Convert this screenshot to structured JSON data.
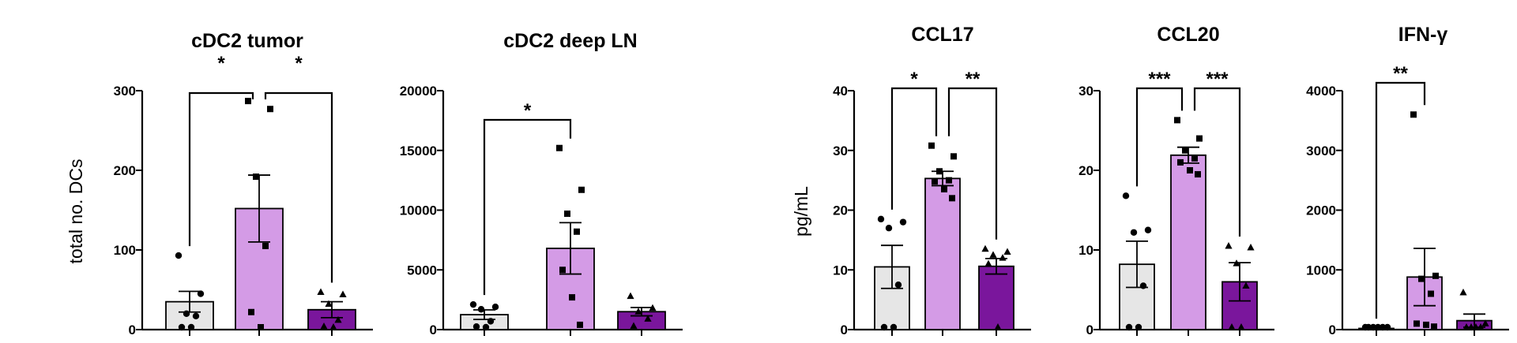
{
  "chart_data": [
    {
      "type": "bar",
      "title": "cDC2 tumor",
      "ylabel": "total no. DCs",
      "ylim": [
        0,
        300
      ],
      "yticks": [
        0,
        100,
        200,
        300
      ],
      "groups": [
        {
          "mean": 35,
          "sem": 13,
          "color": "#e6e6e6",
          "marker": "circle",
          "points": [
            93,
            45,
            20,
            17,
            2,
            1
          ]
        },
        {
          "mean": 152,
          "sem": 42,
          "color": "#d49be6",
          "marker": "square",
          "points": [
            287,
            277,
            192,
            105,
            22,
            2
          ]
        },
        {
          "mean": 25,
          "sem": 10,
          "color": "#7a169c",
          "marker": "triangle",
          "points": [
            47,
            44,
            32,
            12,
            4,
            2
          ]
        }
      ],
      "comparisons": [
        {
          "from": 0,
          "to": 1,
          "label": "*"
        },
        {
          "from": 1,
          "to": 2,
          "label": "*"
        }
      ]
    },
    {
      "type": "bar",
      "title": "cDC2 deep LN",
      "ylabel": "",
      "ylim": [
        0,
        20000
      ],
      "yticks": [
        0,
        5000,
        10000,
        15000,
        20000
      ],
      "groups": [
        {
          "mean": 1250,
          "sem": 400,
          "color": "#e6e6e6",
          "marker": "circle",
          "points": [
            2100,
            1900,
            1700,
            700,
            250,
            150
          ]
        },
        {
          "mean": 6800,
          "sem": 2150,
          "color": "#d49be6",
          "marker": "square",
          "points": [
            15200,
            11700,
            9700,
            8200,
            5000,
            2700,
            400
          ]
        },
        {
          "mean": 1500,
          "sem": 350,
          "color": "#7a169c",
          "marker": "triangle",
          "points": [
            2800,
            1800,
            1500,
            900,
            300
          ]
        }
      ],
      "comparisons": [
        {
          "from": 0,
          "to": 1,
          "label": "*"
        }
      ]
    },
    {
      "type": "bar",
      "title": "CCL17",
      "ylabel": "pg/mL",
      "ylim": [
        0,
        40
      ],
      "yticks": [
        0,
        10,
        20,
        30,
        40
      ],
      "groups": [
        {
          "mean": 10.5,
          "sem": 3.6,
          "color": "#e6e6e6",
          "marker": "circle",
          "points": [
            18.5,
            18.0,
            17.0,
            7.5,
            0.2,
            0.1
          ]
        },
        {
          "mean": 25.3,
          "sem": 1.2,
          "color": "#d49be6",
          "marker": "square",
          "points": [
            30.8,
            29.0,
            26.5,
            25.0,
            24.8,
            23.5,
            22.0
          ]
        },
        {
          "mean": 10.6,
          "sem": 1.3,
          "color": "#7a169c",
          "marker": "triangle",
          "points": [
            13.5,
            13.0,
            12.5,
            12.0,
            11.0,
            0.1
          ]
        }
      ],
      "comparisons": [
        {
          "from": 0,
          "to": 1,
          "label": "*"
        },
        {
          "from": 1,
          "to": 2,
          "label": "**"
        }
      ]
    },
    {
      "type": "bar",
      "title": "CCL20",
      "ylabel": "",
      "ylim": [
        0,
        30
      ],
      "yticks": [
        0,
        10,
        20,
        30
      ],
      "groups": [
        {
          "mean": 8.2,
          "sem": 2.9,
          "color": "#e6e6e6",
          "marker": "circle",
          "points": [
            16.8,
            12.5,
            12.2,
            5.5,
            0.1,
            0.1
          ]
        },
        {
          "mean": 21.9,
          "sem": 1.0,
          "color": "#d49be6",
          "marker": "square",
          "points": [
            26.3,
            24.0,
            22.5,
            21.5,
            21.0,
            20.0,
            19.5
          ]
        },
        {
          "mean": 6.0,
          "sem": 2.4,
          "color": "#7a169c",
          "marker": "triangle",
          "points": [
            10.5,
            10.3,
            8.3,
            5.5,
            0.2,
            0.1
          ]
        }
      ],
      "comparisons": [
        {
          "from": 0,
          "to": 1,
          "label": "***"
        },
        {
          "from": 1,
          "to": 2,
          "label": "***"
        }
      ]
    },
    {
      "type": "bar",
      "title": "IFN-γ",
      "ylabel": "",
      "ylim": [
        0,
        4000
      ],
      "yticks": [
        0,
        1000,
        2000,
        3000,
        4000
      ],
      "groups": [
        {
          "mean": 20,
          "sem": 5,
          "color": "#e6e6e6",
          "marker": "circle",
          "points": [
            0,
            0,
            0,
            0,
            0,
            0
          ]
        },
        {
          "mean": 880,
          "sem": 480,
          "color": "#d49be6",
          "marker": "square",
          "points": [
            3600,
            900,
            850,
            600,
            100,
            80,
            50
          ]
        },
        {
          "mean": 150,
          "sem": 110,
          "color": "#7a169c",
          "marker": "triangle",
          "points": [
            620,
            100,
            30,
            10,
            0,
            0
          ]
        }
      ],
      "comparisons": [
        {
          "from": 0,
          "to": 1,
          "label": "**"
        }
      ]
    }
  ]
}
